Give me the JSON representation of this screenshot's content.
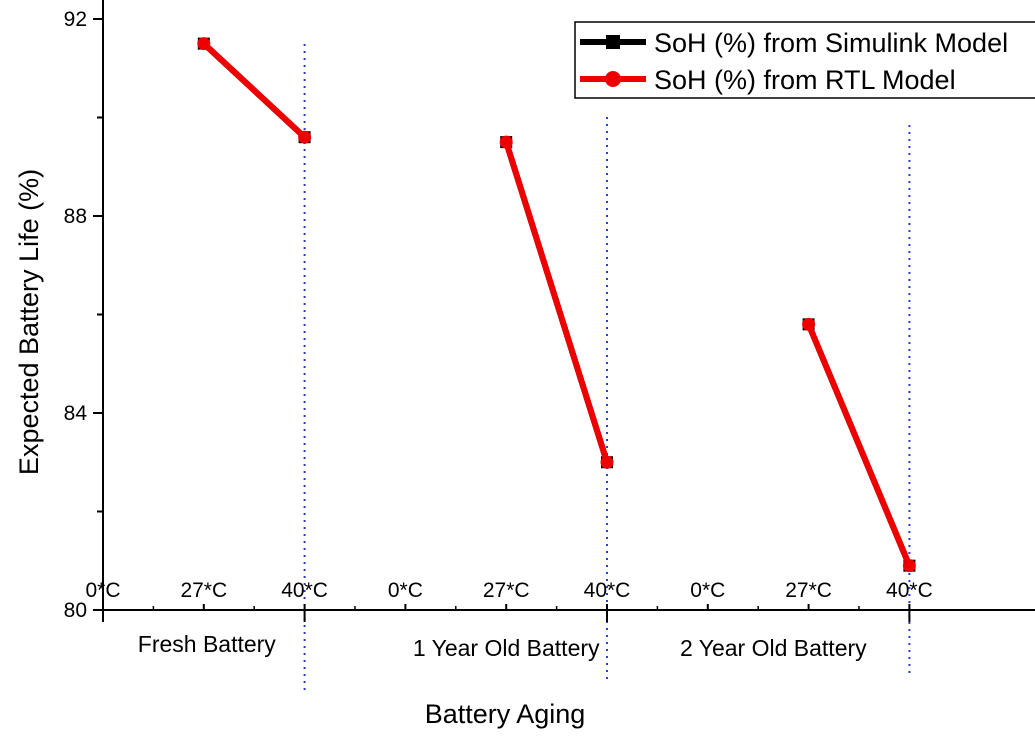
{
  "chart_data": {
    "type": "line",
    "xlabel": "Battery Aging",
    "ylabel": "Expected Battery Life (%)",
    "ylim": [
      80,
      92
    ],
    "yticks": [
      {
        "value": 80,
        "label": "80"
      },
      {
        "value": 84,
        "label": "84"
      },
      {
        "value": 88,
        "label": "88"
      },
      {
        "value": 92,
        "label": "92"
      }
    ],
    "x_ticks": [
      "0*C",
      "27*C",
      "40*C",
      "0*C",
      "27*C",
      "40*C",
      "0*C",
      "27*C",
      "40*C"
    ],
    "groups": [
      "Fresh Battery",
      "1 Year Old Battery",
      "2 Year Old Battery"
    ],
    "legend_position": "top-right",
    "series": [
      {
        "name": "SoH (%) from Simulink Model",
        "color": "#000000",
        "marker": "square",
        "segments": [
          [
            {
              "x": 1,
              "y": 91.5
            },
            {
              "x": 2,
              "y": 89.6
            }
          ],
          [
            {
              "x": 4,
              "y": 89.5
            },
            {
              "x": 5,
              "y": 83.0
            }
          ],
          [
            {
              "x": 7,
              "y": 85.8
            },
            {
              "x": 8,
              "y": 80.9
            }
          ]
        ]
      },
      {
        "name": "SoH (%) from RTL Model",
        "color": "#ee0000",
        "marker": "circle",
        "segments": [
          [
            {
              "x": 1,
              "y": 91.5
            },
            {
              "x": 2,
              "y": 89.6
            }
          ],
          [
            {
              "x": 4,
              "y": 89.5
            },
            {
              "x": 5,
              "y": 83.0
            }
          ],
          [
            {
              "x": 7,
              "y": 85.8
            },
            {
              "x": 8,
              "y": 80.9
            }
          ]
        ]
      }
    ]
  }
}
